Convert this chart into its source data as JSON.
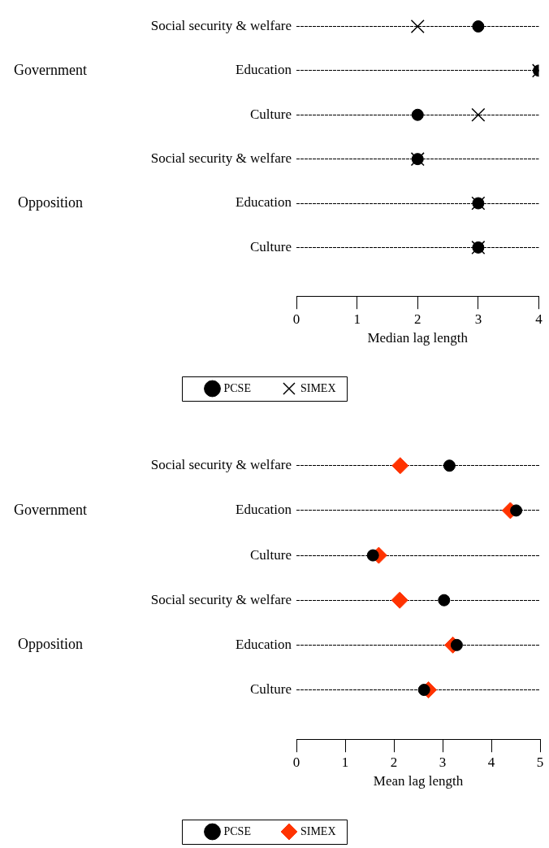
{
  "chart_data": [
    {
      "type": "scatter",
      "orientation": "horizontal",
      "xlabel": "Median lag length",
      "categories": [
        "Social security & welfare",
        "Education",
        "Culture",
        "Social security & welfare",
        "Education",
        "Culture"
      ],
      "annotations": [
        "Government",
        "Opposition"
      ],
      "series": [
        {
          "name": "PCSE",
          "color": "#000000",
          "marker": "circle",
          "values": [
            3,
            4,
            2,
            2,
            3,
            3
          ]
        },
        {
          "name": "SIMEX",
          "color": "#000000",
          "marker": "cross",
          "values": [
            2,
            4,
            3,
            2,
            3,
            3
          ]
        }
      ],
      "xlim": [
        0,
        4
      ],
      "xticks": [
        0,
        1,
        2,
        3,
        4
      ],
      "grid": "y",
      "line_style": "dashed",
      "legend": "bottom"
    },
    {
      "type": "scatter",
      "orientation": "horizontal",
      "xlabel": "Mean lag length",
      "categories": [
        "Social security & welfare",
        "Education",
        "Culture",
        "Social security & welfare",
        "Education",
        "Culture"
      ],
      "annotations": [
        "Government",
        "Opposition"
      ],
      "series": [
        {
          "name": "PCSE",
          "color": "#000000",
          "marker": "circle",
          "values": [
            3.14,
            4.51,
            1.57,
            3.03,
            3.29,
            2.62
          ]
        },
        {
          "name": "SIMEX",
          "color": "#ff3300",
          "marker": "diamond",
          "values": [
            2.13,
            4.39,
            1.69,
            2.12,
            3.21,
            2.71
          ]
        }
      ],
      "xlim": [
        0,
        5
      ],
      "xticks": [
        0,
        1,
        2,
        3,
        4,
        5
      ],
      "grid": "y",
      "line_style": "dashed",
      "legend": "bottom"
    }
  ]
}
